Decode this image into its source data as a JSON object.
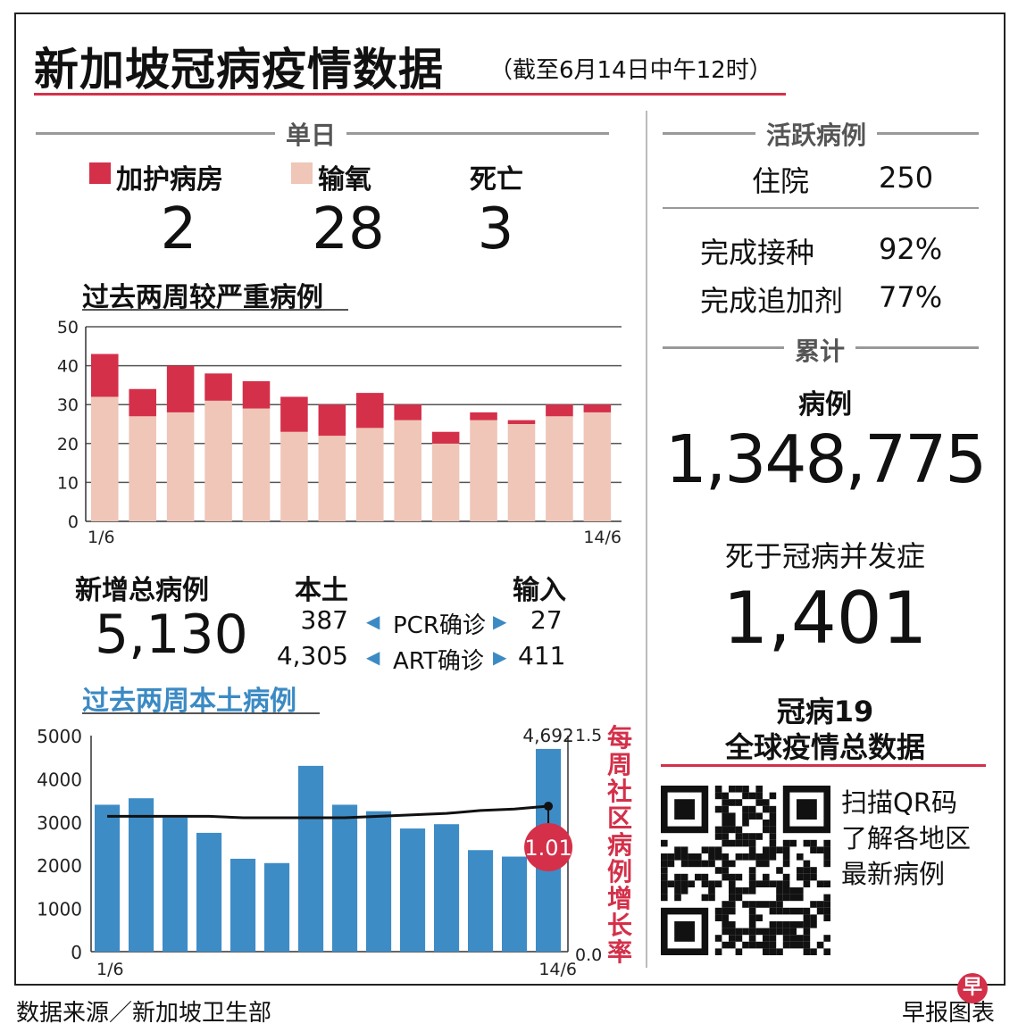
{
  "title": "新加坡冠病疫情数据",
  "subtitle": "（截至6月14日中午12时）",
  "daily": {
    "section_label": "单日",
    "icu_label": "加护病房",
    "icu_value": "2",
    "oxygen_label": "输氧",
    "oxygen_value": "28",
    "death_label": "死亡",
    "death_value": "3"
  },
  "severe_chart_title": "过去两周较严重病例",
  "new_cases": {
    "total_label": "新增总病例",
    "total_value": "5,130",
    "local_label": "本土",
    "imported_label": "输入",
    "pcr_label": "PCR确诊",
    "art_label": "ART确诊",
    "pcr_local": "387",
    "pcr_imported": "27",
    "art_local": "4,305",
    "art_imported": "411"
  },
  "local_chart_title": "过去两周本土病例",
  "active": {
    "section_label": "活跃病例",
    "hospital_label": "住院",
    "hospital_value": "250",
    "vaccinated_label": "完成接种",
    "vaccinated_value": "92%",
    "booster_label": "完成追加剂",
    "booster_value": "77%"
  },
  "cumulative": {
    "section_label": "累计",
    "cases_label": "病例",
    "cases_value": "1,348,775",
    "deaths_label": "死于冠病并发症",
    "deaths_value": "1,401"
  },
  "global": {
    "line1": "冠病19",
    "line2": "全球疫情总数据",
    "qr_text1": "扫描QR码",
    "qr_text2": "了解各地区",
    "qr_text3": "最新病例"
  },
  "footer": {
    "source": "数据来源／新加坡卫生部",
    "brand": "早报图表",
    "logo_char": "早"
  },
  "colors": {
    "accent_red": "#d4304a",
    "oxygen_pink": "#efc6b8",
    "bar_blue": "#3e8cc6",
    "label_blue": "#3b8ac4"
  },
  "chart_data": [
    {
      "type": "bar",
      "stacked": true,
      "title": "过去两周较严重病例",
      "x_start_label": "1/6",
      "x_end_label": "14/6",
      "ylim": [
        0,
        50
      ],
      "yticks": [
        0,
        10,
        20,
        30,
        40,
        50
      ],
      "grid": true,
      "series": [
        {
          "name": "输氧",
          "color": "#efc6b8",
          "values": [
            32,
            27,
            28,
            31,
            29,
            23,
            22,
            24,
            26,
            20,
            26,
            25,
            27,
            28
          ]
        },
        {
          "name": "加护病房",
          "color": "#d4304a",
          "values": [
            11,
            7,
            12,
            7,
            7,
            9,
            8,
            9,
            4,
            3,
            2,
            1,
            3,
            2
          ]
        }
      ]
    },
    {
      "type": "bar",
      "title": "过去两周本土病例",
      "x_start_label": "1/6",
      "x_end_label": "14/6",
      "ylim": [
        0,
        5000
      ],
      "yticks": [
        0,
        1000,
        2000,
        3000,
        4000,
        5000
      ],
      "values": [
        3400,
        3550,
        3100,
        2750,
        2150,
        2050,
        4300,
        3400,
        3250,
        2850,
        2950,
        2350,
        2200,
        4692
      ],
      "value_label": "4,692",
      "y2_label": "每周社区病例增长率",
      "y2lim": [
        0.0,
        1.5
      ],
      "y2_tick_labels": [
        "0.0",
        "1.5"
      ],
      "growth_rate": [
        0.94,
        0.94,
        0.94,
        0.94,
        0.93,
        0.93,
        0.93,
        0.93,
        0.94,
        0.95,
        0.96,
        0.98,
        0.99,
        1.01
      ],
      "growth_label": "1.01"
    }
  ]
}
